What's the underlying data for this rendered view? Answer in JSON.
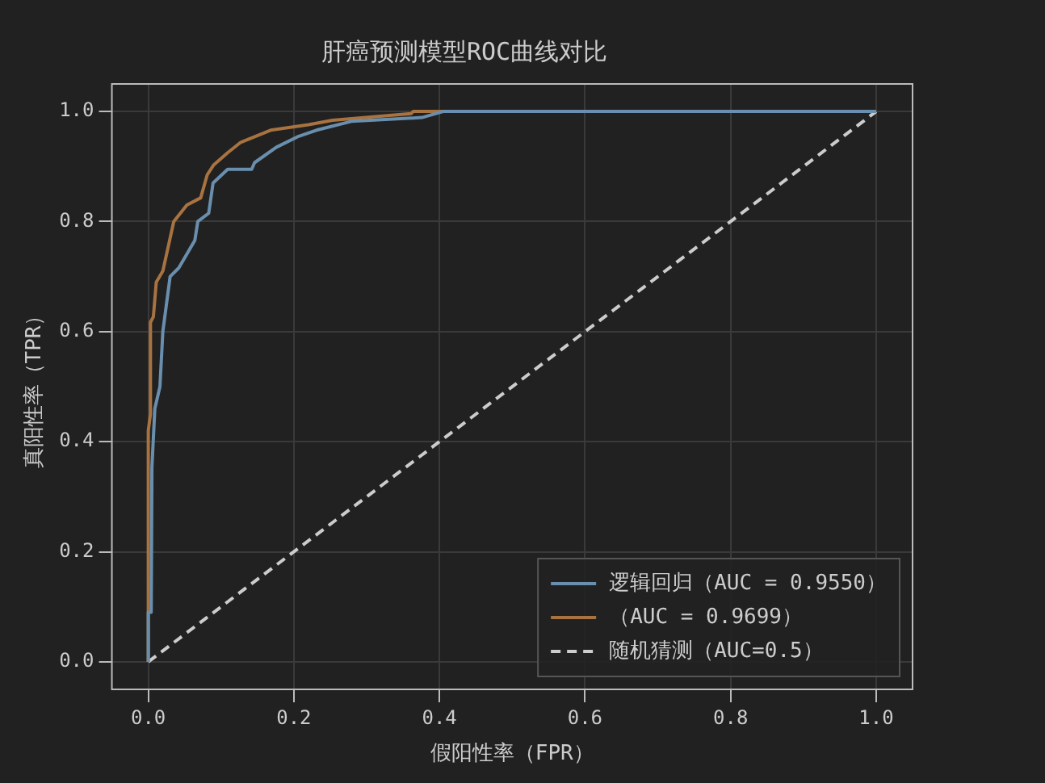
{
  "chart_data": {
    "type": "line",
    "title": "肝癌预测模型ROC曲线对比",
    "xlabel": "假阳性率（FPR）",
    "ylabel": "真阳性率（TPR）",
    "xlim": [
      -0.05,
      1.05
    ],
    "ylim": [
      -0.05,
      1.05
    ],
    "xticks": [
      {
        "value": 0,
        "label": "0.0"
      },
      {
        "value": 0.2,
        "label": "0.2"
      },
      {
        "value": 0.4,
        "label": "0.4"
      },
      {
        "value": 0.6,
        "label": "0.6"
      },
      {
        "value": 0.8,
        "label": "0.8"
      },
      {
        "value": 1,
        "label": "1.0"
      }
    ],
    "yticks": [
      {
        "value": 0,
        "label": "0.0"
      },
      {
        "value": 0.2,
        "label": "0.2"
      },
      {
        "value": 0.4,
        "label": "0.4"
      },
      {
        "value": 0.6,
        "label": "0.6"
      },
      {
        "value": 0.8,
        "label": "0.8"
      },
      {
        "value": 1,
        "label": "1.0"
      }
    ],
    "grid": true,
    "legend": "bottom right",
    "marker": "none",
    "series": [
      {
        "name": "逻辑回归（AUC = 0.9550）",
        "color": "#6a8fae",
        "line_style": "solid",
        "x": [
          0,
          0,
          0.004,
          0.005,
          0.009,
          0.016,
          0.02,
          0.03,
          0.042,
          0.064,
          0.068,
          0.083,
          0.089,
          0.109,
          0.142,
          0.146,
          0.176,
          0.205,
          0.231,
          0.279,
          0.376,
          0.405,
          1
        ],
        "values": [
          0,
          0.09,
          0.09,
          0.354,
          0.46,
          0.5,
          0.6,
          0.7,
          0.716,
          0.766,
          0.8,
          0.815,
          0.87,
          0.895,
          0.895,
          0.907,
          0.935,
          0.954,
          0.966,
          0.982,
          0.989,
          1,
          1
        ]
      },
      {
        "name": "（AUC = 0.9699）",
        "color": "#a87341",
        "line_style": "solid",
        "x": [
          0,
          0,
          0.003,
          0.003,
          0.007,
          0.011,
          0.02,
          0.035,
          0.053,
          0.072,
          0.081,
          0.09,
          0.109,
          0.127,
          0.168,
          0.22,
          0.253,
          0.361,
          0.364,
          1
        ],
        "values": [
          0,
          0.42,
          0.45,
          0.617,
          0.627,
          0.69,
          0.71,
          0.8,
          0.83,
          0.843,
          0.885,
          0.903,
          0.925,
          0.944,
          0.966,
          0.976,
          0.984,
          0.996,
          1,
          1
        ]
      },
      {
        "name": "随机猜测（AUC=0.5）",
        "color": "#cccccc",
        "line_style": "dashed",
        "x": [
          0,
          1
        ],
        "values": [
          0,
          1
        ]
      }
    ]
  }
}
